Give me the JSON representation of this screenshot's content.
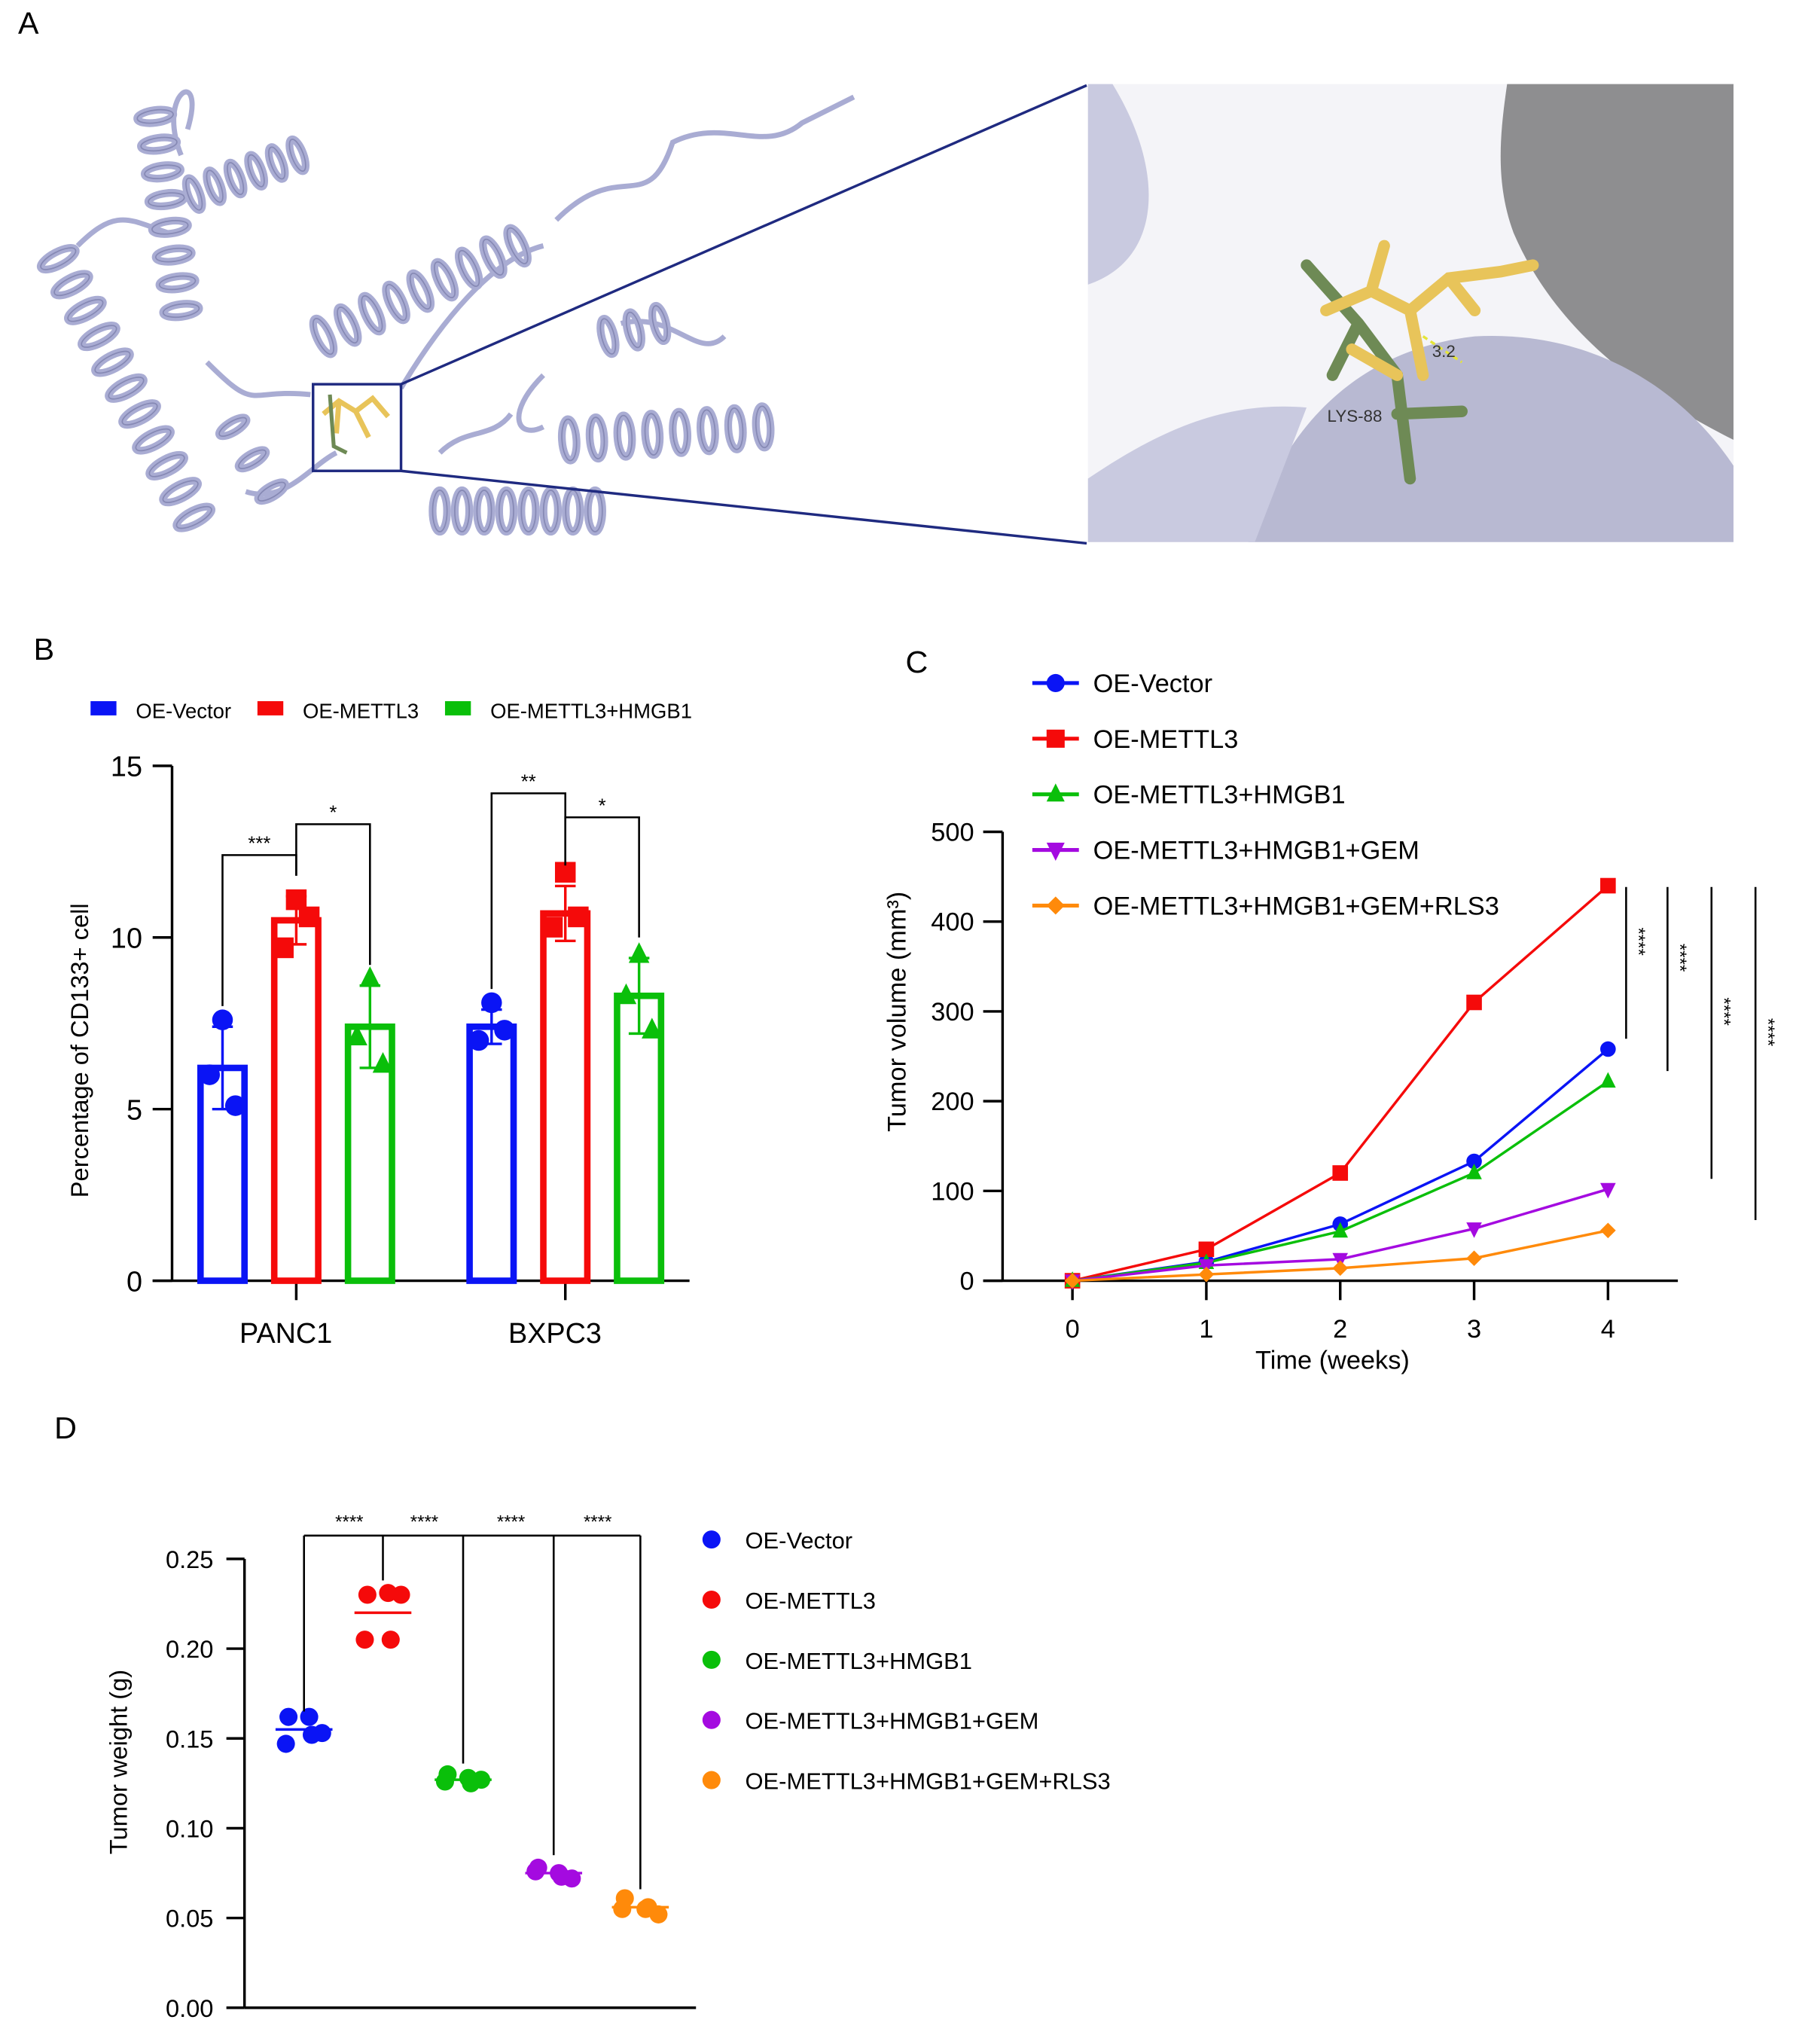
{
  "panel_labels": {
    "a": "A",
    "b": "B",
    "c": "C",
    "d": "D"
  },
  "panel_a": {
    "distance_label": "3.2",
    "residue_label": "LYS-88",
    "colors": {
      "protein": "#a9acd3",
      "ligand": "#e8c45a",
      "residue": "#6e8a55",
      "box": "#1f2a80"
    }
  },
  "chart_data": [
    {
      "type": "bar",
      "title": "",
      "ylabel": "Percentage of CD133+ cell",
      "xlabel": "",
      "ylim": [
        0,
        15
      ],
      "yticks": [
        "0",
        "5",
        "10",
        "15"
      ],
      "categories": [
        "PANC1",
        "BXPC3"
      ],
      "legend": [
        "OE-Vector",
        "OE-METTL3",
        "OE-METTL3+HMGB1"
      ],
      "legend_placement": "top",
      "colors": [
        "#0a14f5",
        "#f50a0a",
        "#0abf0a"
      ],
      "series": [
        {
          "name": "OE-Vector",
          "values": [
            6.2,
            7.4
          ],
          "sd": [
            1.2,
            0.5
          ],
          "points": [
            [
              7.6,
              6.0,
              5.1
            ],
            [
              8.1,
              7.0,
              7.3
            ]
          ],
          "marker": "circle"
        },
        {
          "name": "OE-METTL3",
          "values": [
            10.5,
            10.7
          ],
          "sd": [
            0.7,
            0.8
          ],
          "points": [
            [
              11.1,
              9.7,
              10.6
            ],
            [
              11.9,
              10.3,
              10.6
            ]
          ],
          "marker": "square"
        },
        {
          "name": "OE-METTL3+HMGB1",
          "values": [
            7.4,
            8.3
          ],
          "sd": [
            1.2,
            1.1
          ],
          "points": [
            [
              8.8,
              7.1,
              6.3
            ],
            [
              9.5,
              8.3,
              7.3
            ]
          ],
          "marker": "triangle"
        }
      ],
      "significance": [
        {
          "category": 0,
          "from": 0,
          "to": 1,
          "label": "***",
          "y": 12.4
        },
        {
          "category": 0,
          "from": 1,
          "to": 2,
          "label": "*",
          "y": 13.3
        },
        {
          "category": 1,
          "from": 0,
          "to": 1,
          "label": "**",
          "y": 14.2
        },
        {
          "category": 1,
          "from": 1,
          "to": 2,
          "label": "*",
          "y": 13.5
        }
      ]
    },
    {
      "type": "line",
      "title": "",
      "xlabel": "Time (weeks)",
      "ylabel": "Tumor volume (mm³)",
      "ylim": [
        0,
        500
      ],
      "xlim": [
        0,
        4
      ],
      "x": [
        0,
        1,
        2,
        3,
        4
      ],
      "xticks": [
        "0",
        "1",
        "2",
        "3",
        "4"
      ],
      "yticks": [
        "0",
        "100",
        "200",
        "300",
        "400",
        "500"
      ],
      "legend_placement": "top-left",
      "series": [
        {
          "name": "OE-Vector",
          "values": [
            0,
            21,
            63,
            133,
            258
          ],
          "color": "#0a14f5",
          "marker": "circle"
        },
        {
          "name": "OE-METTL3",
          "values": [
            0,
            35,
            120,
            310,
            440
          ],
          "color": "#f50a0a",
          "marker": "square"
        },
        {
          "name": "OE-METTL3+HMGB1",
          "values": [
            0,
            20,
            55,
            120,
            222
          ],
          "color": "#0abf0a",
          "marker": "triangle"
        },
        {
          "name": "OE-METTL3+HMGB1+GEM",
          "values": [
            0,
            17,
            24,
            58,
            102
          ],
          "color": "#a40ae0",
          "marker": "triangle-down"
        },
        {
          "name": "OE-METTL3+HMGB1+GEM+RLS3",
          "values": [
            0,
            7,
            14,
            25,
            56
          ],
          "color": "#ff8a0a",
          "marker": "diamond"
        }
      ],
      "significance": [
        {
          "label": "****",
          "from": 440,
          "to": 258
        },
        {
          "label": "****",
          "from": 440,
          "to": 222
        },
        {
          "label": "****",
          "from": 440,
          "to": 102
        },
        {
          "label": "****",
          "from": 440,
          "to": 56
        }
      ]
    },
    {
      "type": "scatter",
      "title": "",
      "xlabel": "",
      "ylabel": "Tumor weight (g)",
      "ylim": [
        0,
        0.25
      ],
      "yticks": [
        "0.00",
        "0.05",
        "0.10",
        "0.15",
        "0.20",
        "0.25"
      ],
      "legend_placement": "right",
      "series": [
        {
          "name": "OE-Vector",
          "points": [
            0.162,
            0.162,
            0.153,
            0.147,
            0.152
          ],
          "mean": 0.155,
          "color": "#0a14f5"
        },
        {
          "name": "OE-METTL3",
          "points": [
            0.23,
            0.231,
            0.23,
            0.205,
            0.205
          ],
          "mean": 0.22,
          "color": "#f50a0a"
        },
        {
          "name": "OE-METTL3+HMGB1",
          "points": [
            0.13,
            0.128,
            0.127,
            0.126,
            0.125
          ],
          "mean": 0.127,
          "color": "#0abf0a"
        },
        {
          "name": "OE-METTL3+HMGB1+GEM",
          "points": [
            0.078,
            0.075,
            0.072,
            0.076,
            0.073
          ],
          "mean": 0.075,
          "color": "#a40ae0"
        },
        {
          "name": "OE-METTL3+HMGB1+GEM+RLS3",
          "points": [
            0.061,
            0.055,
            0.052,
            0.055,
            0.056
          ],
          "mean": 0.056,
          "color": "#ff8a0a"
        }
      ],
      "significance": [
        {
          "from": 0,
          "to": 1,
          "label": "****"
        },
        {
          "from": 1,
          "to": 2,
          "label": "****"
        },
        {
          "from": 1,
          "to": 3,
          "label": "****"
        },
        {
          "from": 1,
          "to": 4,
          "label": "****"
        }
      ]
    }
  ]
}
